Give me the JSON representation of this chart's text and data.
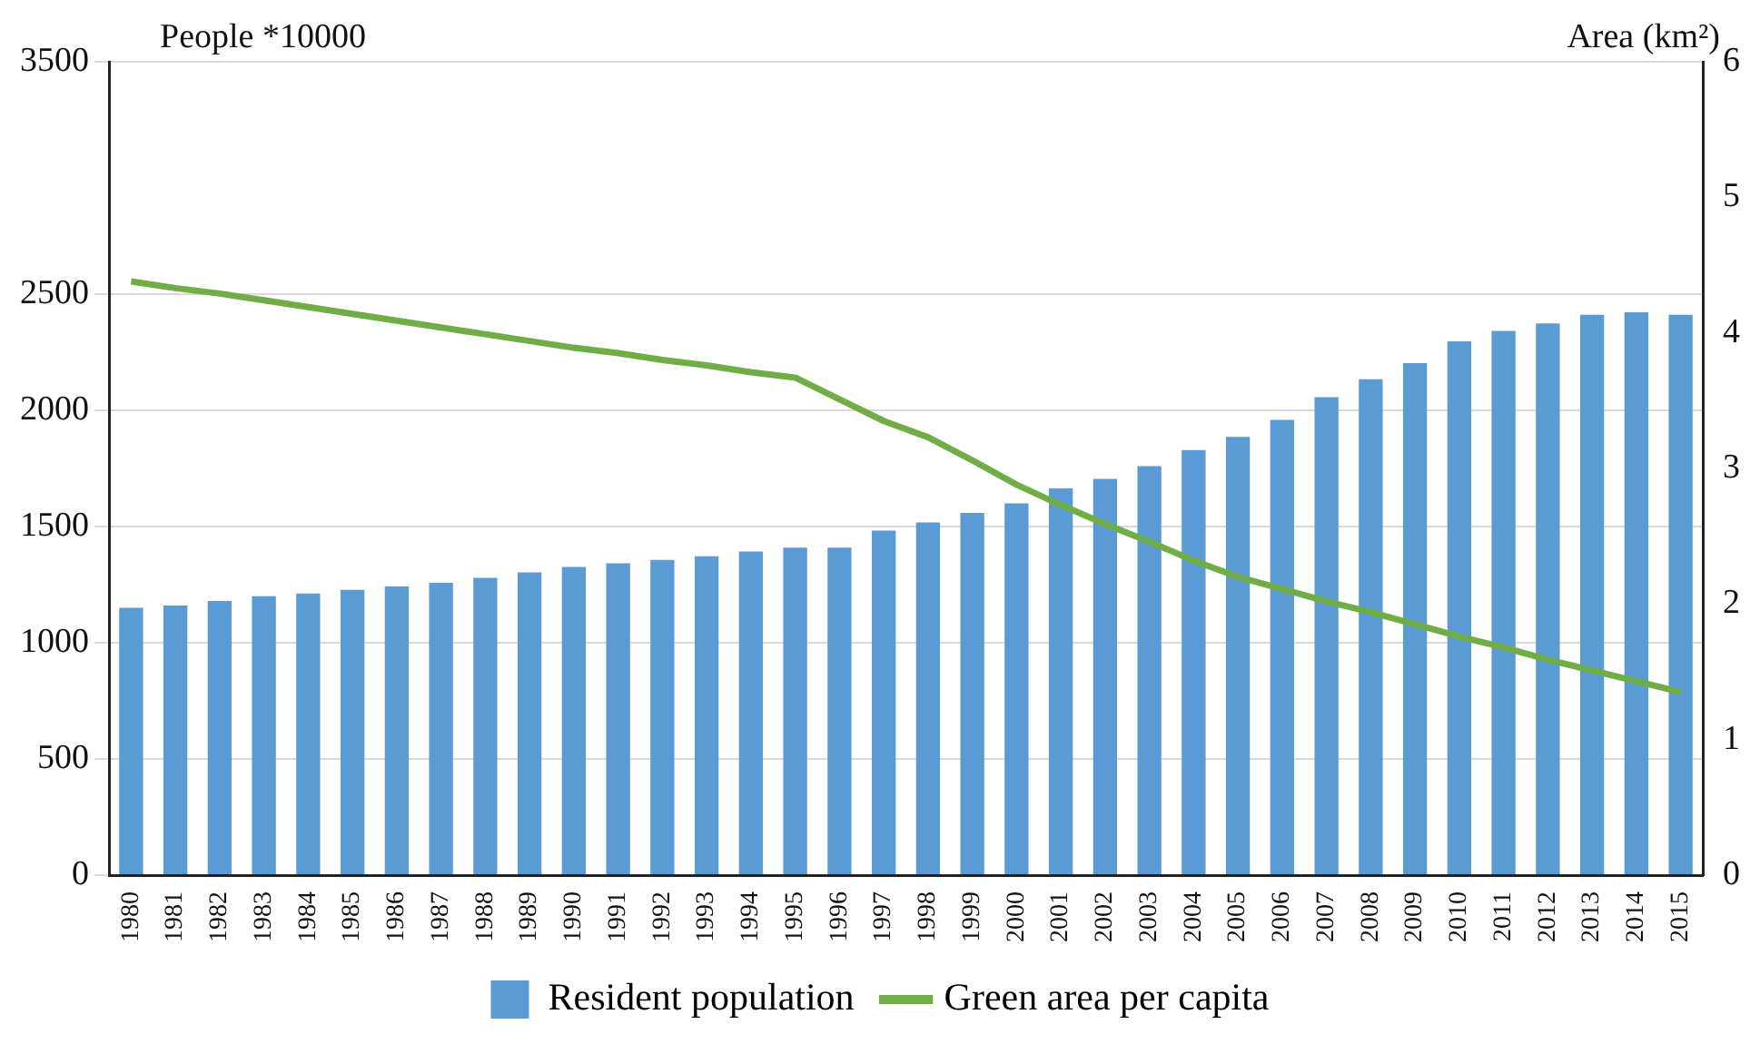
{
  "chart_data": {
    "type": "bar",
    "ylabel": "People *10000",
    "y2label": "Area (km²)",
    "categories": [
      "1980",
      "1981",
      "1982",
      "1983",
      "1984",
      "1985",
      "1986",
      "1987",
      "1988",
      "1989",
      "1990",
      "1991",
      "1992",
      "1993",
      "1994",
      "1995",
      "1996",
      "1997",
      "1998",
      "1999",
      "2000",
      "2001",
      "2002",
      "2003",
      "2004",
      "2005",
      "2006",
      "2007",
      "2008",
      "2009",
      "2010",
      "2011",
      "2012",
      "2013",
      "2014",
      "2015"
    ],
    "series": [
      {
        "name": "Resident population",
        "color": "#5b9bd5",
        "values": [
          1150,
          1160,
          1180,
          1200,
          1212,
          1228,
          1242,
          1258,
          1279,
          1303,
          1326,
          1342,
          1356,
          1372,
          1393,
          1409,
          1409,
          1482,
          1518,
          1559,
          1600,
          1664,
          1705,
          1760,
          1829,
          1886,
          1959,
          2057,
          2134,
          2203,
          2297,
          2342,
          2374,
          2411,
          2422,
          2411
        ]
      },
      {
        "name": "Green area per capita",
        "type": "line",
        "axis": "y2",
        "color": "#70ad47",
        "values": [
          4.38,
          4.33,
          4.29,
          4.24,
          4.19,
          4.14,
          4.09,
          4.04,
          3.99,
          3.94,
          3.89,
          3.85,
          3.8,
          3.76,
          3.71,
          3.67,
          3.51,
          3.35,
          3.23,
          3.06,
          2.88,
          2.73,
          2.59,
          2.46,
          2.32,
          2.2,
          2.11,
          2.02,
          1.94,
          1.85,
          1.76,
          1.68,
          1.59,
          1.51,
          1.43,
          1.35
        ]
      }
    ],
    "ylim": [
      0,
      3500
    ],
    "yticks": [
      0,
      500,
      1000,
      1500,
      2000,
      2500,
      3500
    ],
    "y2lim": [
      0,
      6
    ],
    "y2ticks": [
      0,
      1,
      2,
      3,
      4,
      5,
      6
    ],
    "grid": "y",
    "legend": "bottom",
    "marker": "none"
  }
}
